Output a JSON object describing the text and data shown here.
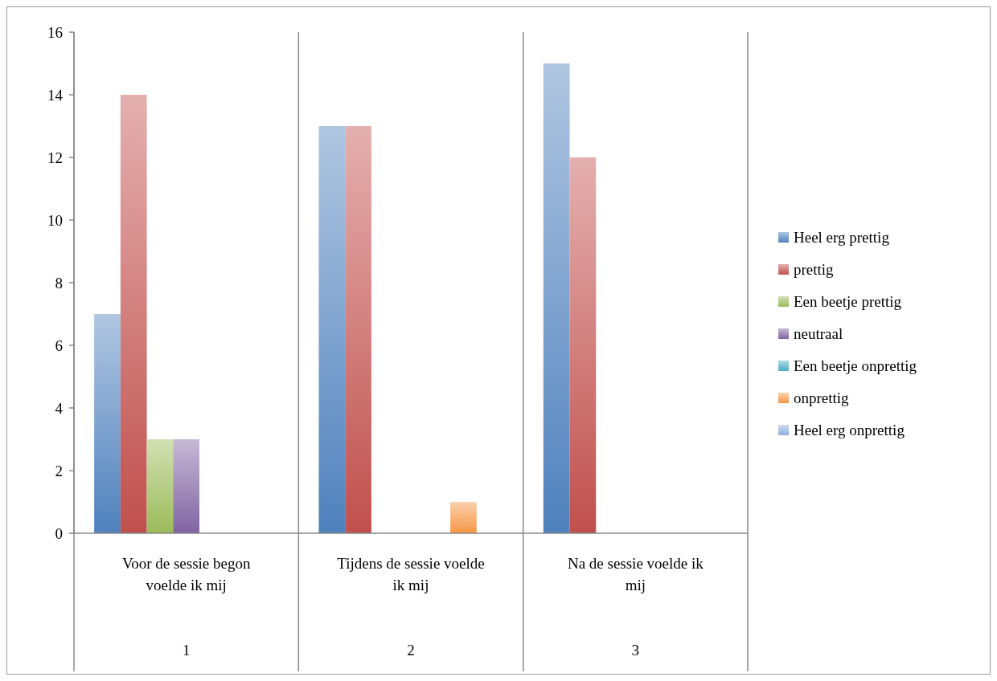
{
  "chart_data": {
    "type": "bar",
    "categories": [
      "Voor de sessie begon voelde ik mij",
      "Tijdens de sessie voelde ik mij",
      "Na de sessie voelde ik mij"
    ],
    "series": [
      {
        "name": "Heel erg prettig",
        "color": "#4f81bd",
        "values": [
          7,
          13,
          15
        ]
      },
      {
        "name": "prettig",
        "color": "#c0504d",
        "values": [
          14,
          13,
          12
        ]
      },
      {
        "name": "Een beetje prettig",
        "color": "#9bbb59",
        "values": [
          3,
          0,
          0
        ]
      },
      {
        "name": "neutraal",
        "color": "#8064a2",
        "values": [
          3,
          0,
          0
        ]
      },
      {
        "name": "Een beetje onprettig",
        "color": "#4bacc6",
        "values": [
          0,
          0,
          0
        ]
      },
      {
        "name": "onprettig",
        "color": "#f79646",
        "values": [
          0,
          1,
          0
        ]
      },
      {
        "name": "Heel erg onprettig",
        "color": "#8fb0e0",
        "values": [
          0,
          0,
          0
        ]
      }
    ],
    "annotations": [
      "1",
      "2",
      "3"
    ],
    "ylim": [
      0,
      16
    ],
    "yticks": [
      0,
      2,
      4,
      6,
      8,
      10,
      12,
      14,
      16
    ],
    "grid": false,
    "legend": "right"
  }
}
